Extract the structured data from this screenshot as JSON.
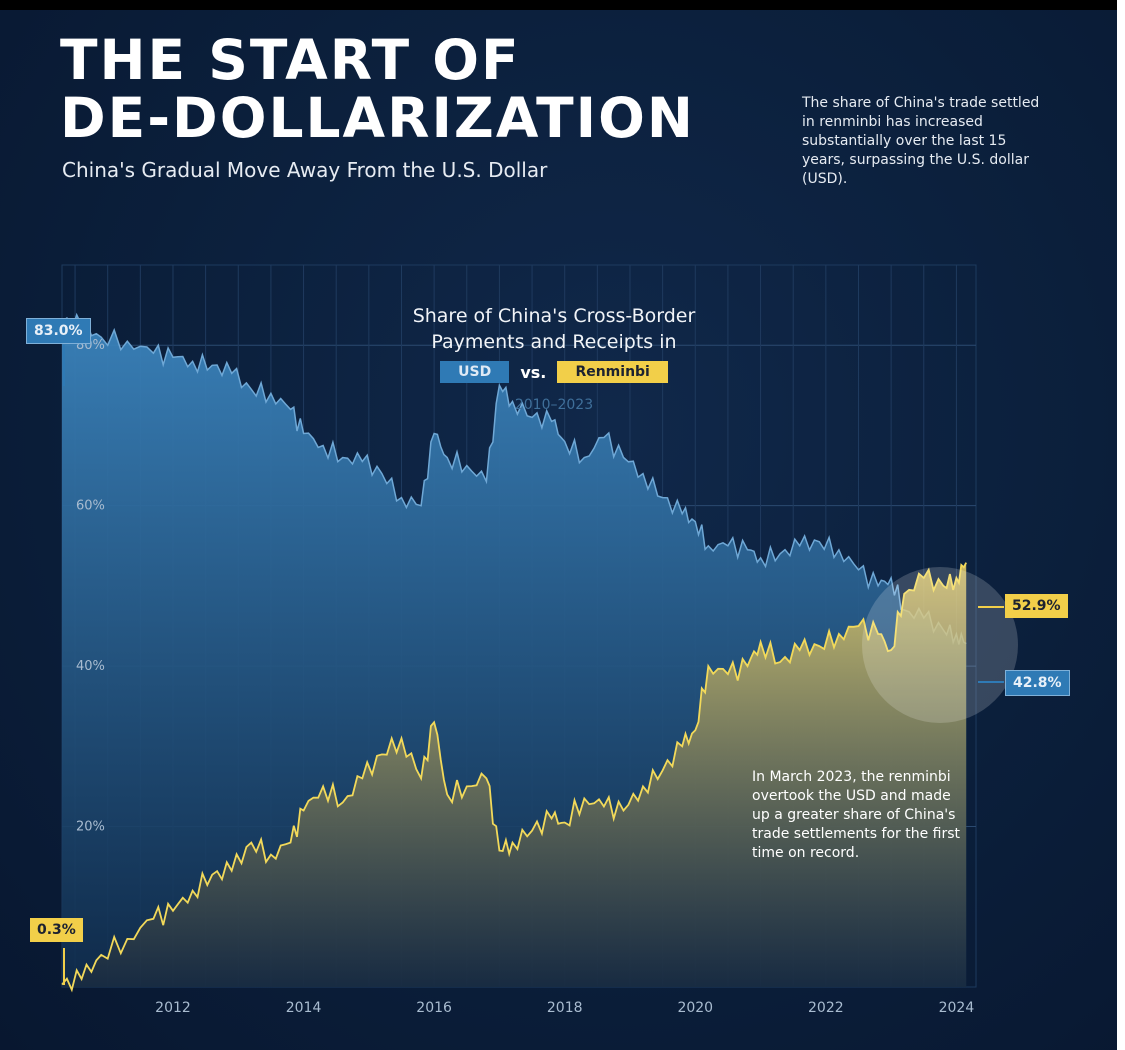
{
  "header": {
    "title_line1": "THE START OF",
    "title_line2": "DE-DOLLARIZATION",
    "subtitle": "China's Gradual Move Away From the U.S. Dollar",
    "note": "The share of China's trade settled in renminbi has increased substantially over the last 15 years, surpassing the U.S. dollar (USD)."
  },
  "colors": {
    "usd": "#2f7ab5",
    "renminbi": "#f2cf49",
    "background": "#0b1f3b"
  },
  "chart_data": {
    "type": "area",
    "title": "Share of China's Cross-Border Payments and Receipts in",
    "subtitle": "2010–2023",
    "legend": {
      "placement": "top-center",
      "usd_label": "USD",
      "vs_label": "vs.",
      "rmb_label": "Renminbi"
    },
    "xlabel": "",
    "ylabel": "",
    "grid": true,
    "xlim": [
      2010.3,
      2024.3
    ],
    "ylim": [
      0,
      90
    ],
    "y_ticks": [
      20,
      40,
      60,
      80
    ],
    "y_tick_labels": [
      "20%",
      "40%",
      "60%",
      "80%"
    ],
    "x_ticks": [
      2012,
      2014,
      2016,
      2018,
      2020,
      2022,
      2024
    ],
    "x_tick_labels": [
      "2012",
      "2014",
      "2016",
      "2018",
      "2020",
      "2022",
      "2024"
    ],
    "series": [
      {
        "name": "USD",
        "x": [
          2010.3,
          2010.6,
          2010.9,
          2011.3,
          2011.7,
          2012.0,
          2012.3,
          2012.6,
          2012.9,
          2013.2,
          2013.5,
          2013.8,
          2014.0,
          2014.3,
          2014.6,
          2014.9,
          2015.2,
          2015.5,
          2015.8,
          2016.0,
          2016.2,
          2016.5,
          2016.8,
          2017.0,
          2017.2,
          2017.5,
          2017.8,
          2018.0,
          2018.3,
          2018.6,
          2018.9,
          2019.2,
          2019.5,
          2019.8,
          2020.0,
          2020.2,
          2020.5,
          2020.8,
          2021.0,
          2021.3,
          2021.6,
          2021.9,
          2022.2,
          2022.5,
          2022.8,
          2023.0,
          2023.2,
          2023.5,
          2023.8,
          2024.0,
          2024.15
        ],
        "values": [
          83.0,
          82.5,
          81.0,
          80.5,
          79.0,
          78.5,
          78.0,
          77.5,
          76.5,
          74.5,
          74.0,
          72.0,
          69.0,
          67.5,
          66.0,
          65.5,
          64.0,
          61.0,
          60.0,
          69.0,
          66.0,
          65.0,
          63.0,
          75.0,
          73.0,
          71.0,
          70.5,
          68.0,
          66.0,
          68.5,
          66.0,
          64.0,
          61.0,
          59.0,
          58.0,
          55.0,
          55.0,
          54.5,
          53.5,
          54.0,
          55.0,
          55.5,
          54.5,
          52.0,
          50.0,
          51.0,
          47.0,
          46.0,
          44.5,
          44.0,
          42.8
        ]
      },
      {
        "name": "Renminbi",
        "x": [
          2010.3,
          2010.6,
          2010.9,
          2011.3,
          2011.7,
          2012.0,
          2012.3,
          2012.6,
          2012.9,
          2013.2,
          2013.5,
          2013.8,
          2014.0,
          2014.3,
          2014.6,
          2014.9,
          2015.2,
          2015.5,
          2015.8,
          2016.0,
          2016.2,
          2016.5,
          2016.8,
          2017.0,
          2017.2,
          2017.5,
          2017.8,
          2018.0,
          2018.3,
          2018.6,
          2018.9,
          2019.2,
          2019.5,
          2019.8,
          2020.0,
          2020.2,
          2020.5,
          2020.8,
          2021.0,
          2021.3,
          2021.6,
          2021.9,
          2022.2,
          2022.5,
          2022.8,
          2023.0,
          2023.2,
          2023.5,
          2023.8,
          2024.0,
          2024.15
        ],
        "values": [
          0.3,
          1.0,
          4.0,
          6.0,
          8.5,
          9.5,
          12.0,
          14.0,
          14.5,
          18.0,
          16.5,
          18.0,
          22.0,
          25.0,
          23.0,
          26.0,
          29.0,
          31.0,
          26.0,
          33.0,
          24.0,
          25.0,
          26.0,
          17.0,
          18.0,
          19.5,
          21.0,
          20.5,
          23.5,
          22.5,
          22.0,
          25.0,
          27.0,
          30.0,
          32.0,
          40.0,
          39.0,
          40.0,
          43.0,
          40.5,
          42.0,
          42.5,
          44.0,
          45.0,
          44.0,
          42.0,
          49.0,
          51.0,
          50.0,
          51.0,
          52.9
        ]
      }
    ],
    "callouts": {
      "usd_start": "83.0%",
      "rmb_start": "0.3%",
      "rmb_end": "52.9%",
      "usd_end": "42.8%"
    },
    "annotation": "In March 2023, the renminbi overtook the USD and made up a greater share of China's trade settlements for the first time on record."
  }
}
